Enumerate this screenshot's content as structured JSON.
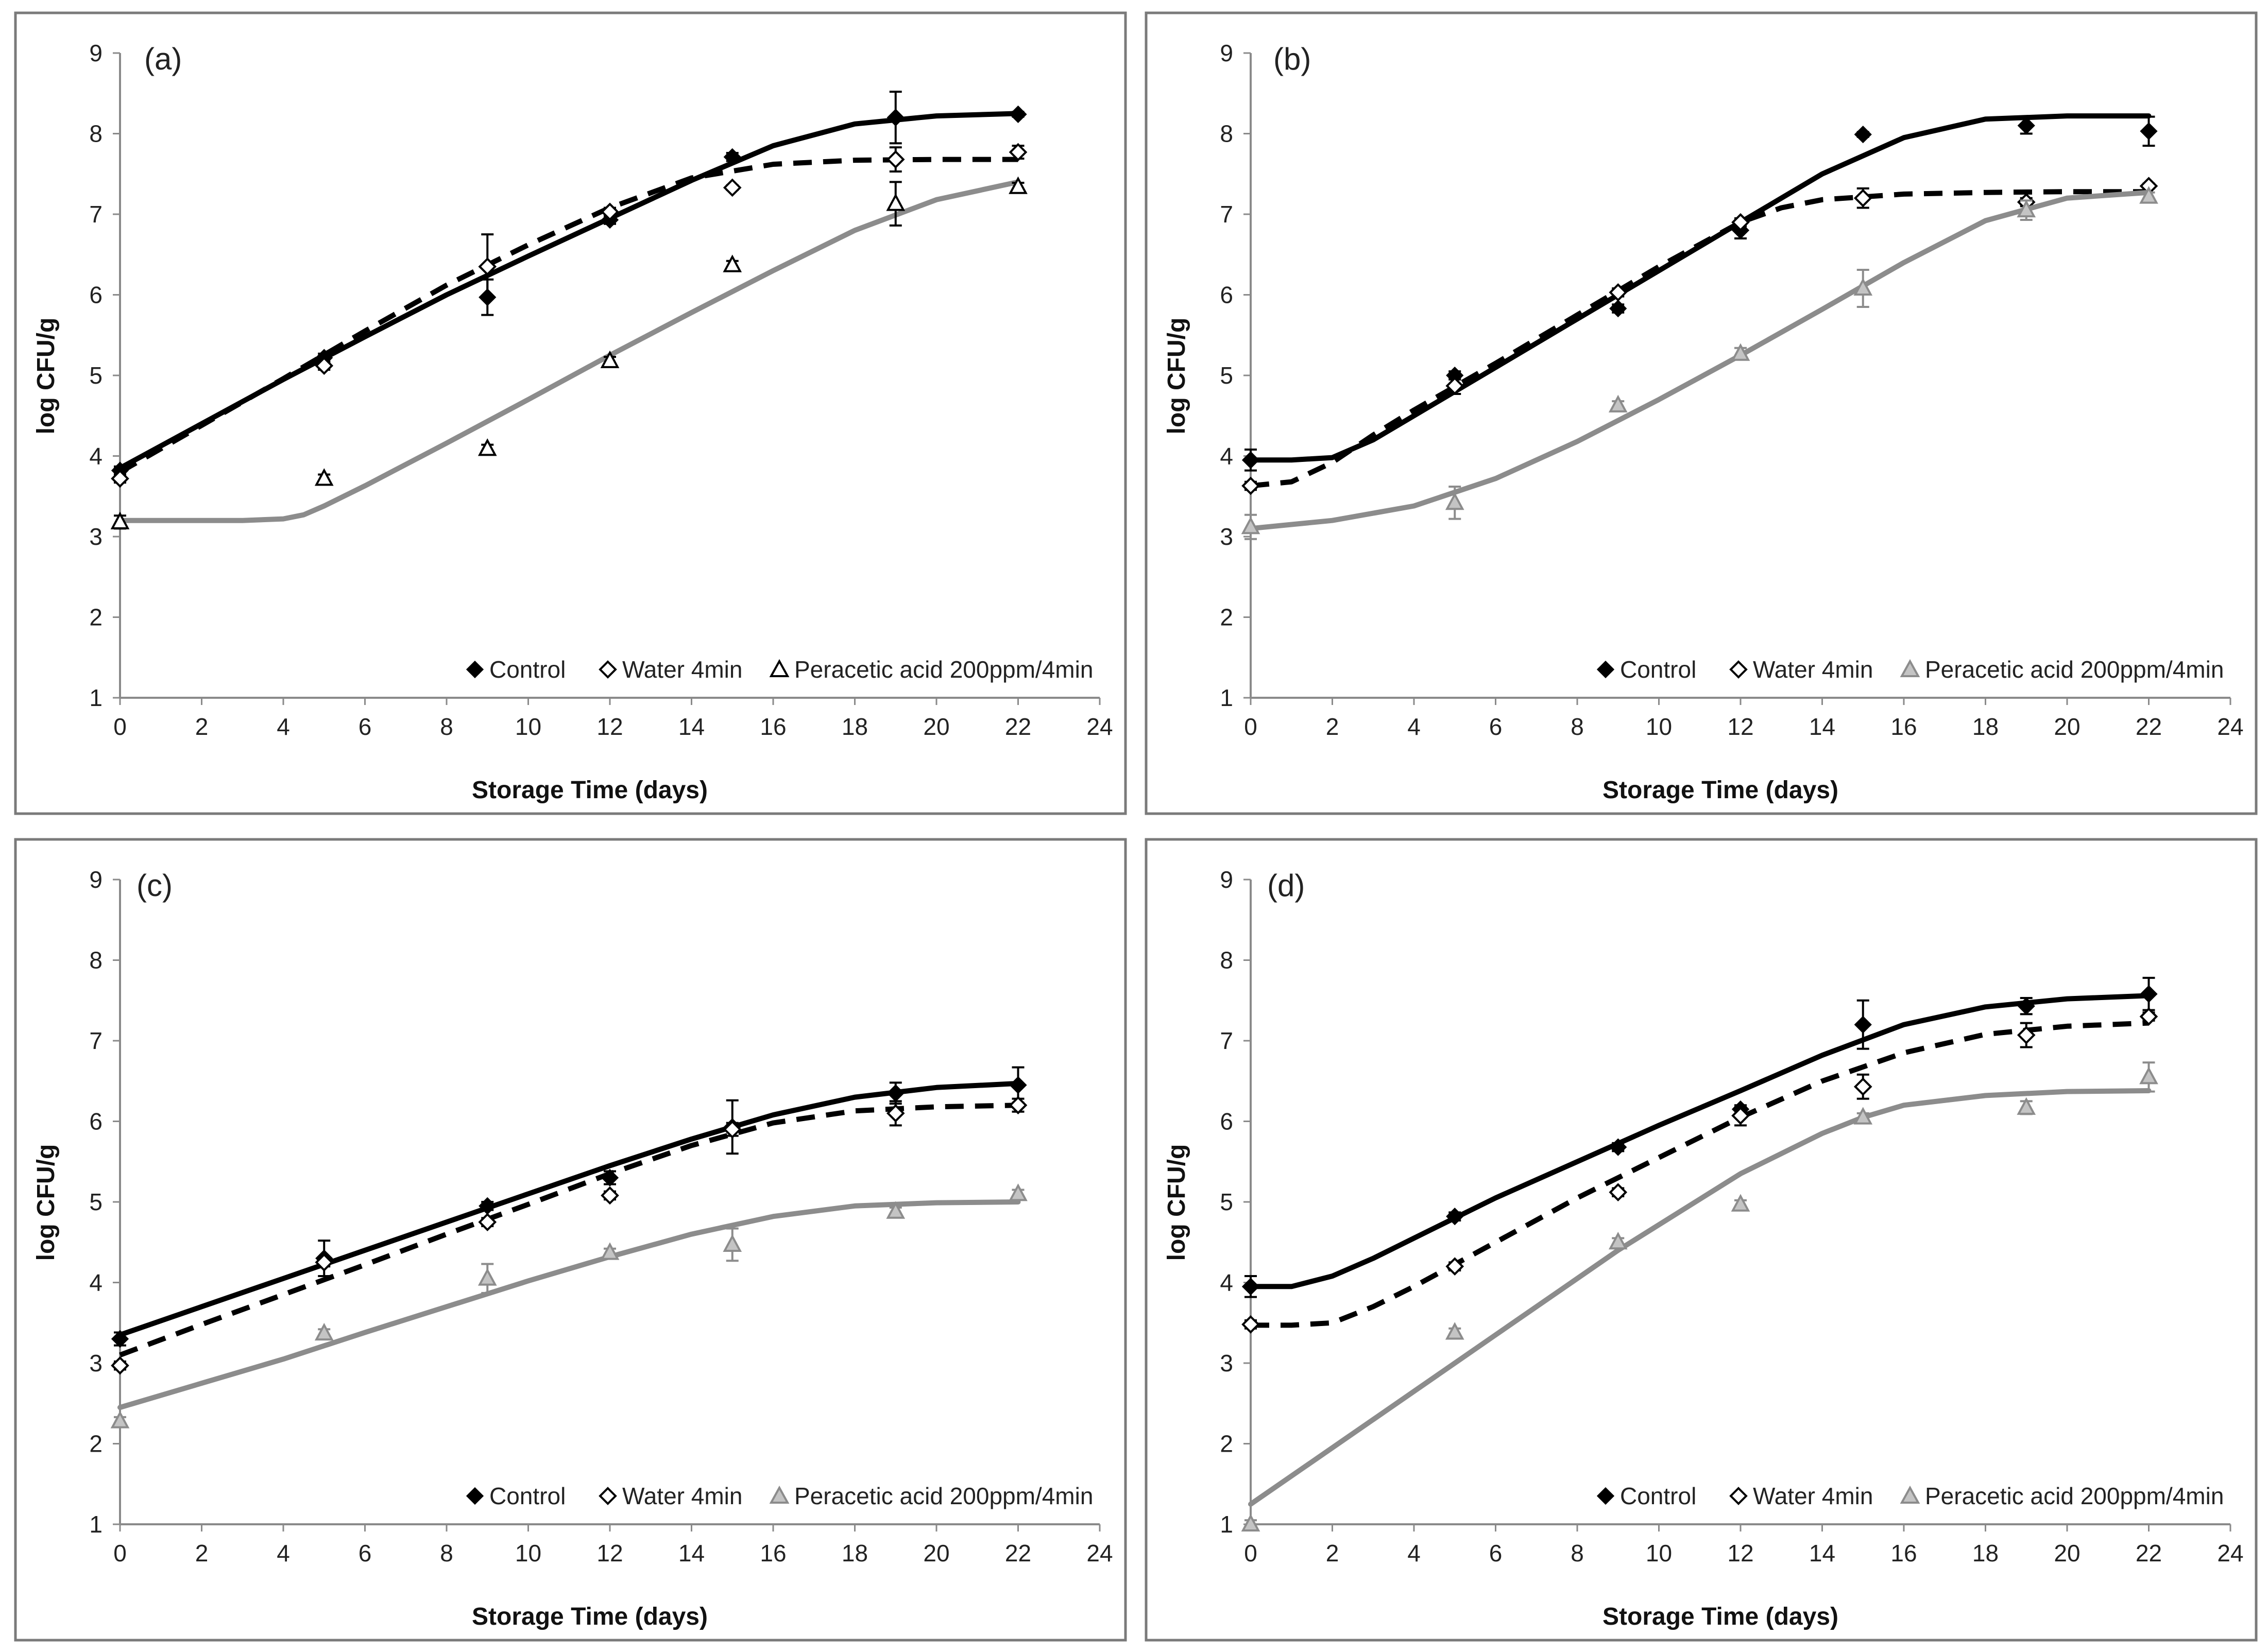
{
  "colors": {
    "control": "#000000",
    "water": "#000000",
    "peracetic_outline_panel_a": "#000000",
    "peracetic": "#8c8c8c",
    "peracetic_fill": "#c4c4c4",
    "frame": "#7a7a7a",
    "axis": "#8a8a8a"
  },
  "chart_data": [
    {
      "type": "scatter",
      "panel_label": "(a)",
      "xlabel": "Storage Time (days)",
      "ylabel": "log CFU/g",
      "xlim": [
        0,
        24
      ],
      "ylim": [
        1,
        9
      ],
      "x_ticks": [
        "0",
        "2",
        "4",
        "6",
        "8",
        "10",
        "12",
        "14",
        "16",
        "18",
        "20",
        "22",
        "24"
      ],
      "y_ticks": [
        "1",
        "2",
        "3",
        "4",
        "5",
        "6",
        "7",
        "8",
        "9"
      ],
      "legend": [
        "Control",
        "Water 4min",
        "Peracetic acid 200ppm/4min"
      ],
      "triangle_style": "outline-black",
      "series": [
        {
          "name": "Control",
          "marker": "diamond-filled",
          "line": "solid-black",
          "x": [
            0,
            5,
            9,
            12,
            15,
            19,
            22
          ],
          "y": [
            3.82,
            5.22,
            5.97,
            6.93,
            7.71,
            8.2,
            8.24
          ],
          "err": [
            0.05,
            0.05,
            0.22,
            0.05,
            0.05,
            0.32,
            0.03
          ],
          "fit_x": [
            0,
            2,
            4,
            6,
            8,
            10,
            12,
            14,
            16,
            18,
            20,
            22
          ],
          "fit_y": [
            3.85,
            4.4,
            4.95,
            5.48,
            6.0,
            6.48,
            6.95,
            7.42,
            7.85,
            8.12,
            8.22,
            8.25
          ]
        },
        {
          "name": "Water 4min",
          "marker": "diamond-open",
          "line": "dashed-black",
          "x": [
            0,
            5,
            9,
            12,
            15,
            19,
            22
          ],
          "y": [
            3.72,
            5.12,
            6.35,
            7.03,
            7.33,
            7.68,
            7.77
          ],
          "err": [
            0.05,
            0.05,
            0.4,
            0.05,
            0.03,
            0.15,
            0.08
          ],
          "fit_x": [
            0,
            2,
            4,
            6,
            8,
            10,
            12,
            14,
            16,
            18,
            20,
            22
          ],
          "fit_y": [
            3.8,
            4.38,
            4.96,
            5.55,
            6.12,
            6.62,
            7.08,
            7.45,
            7.62,
            7.67,
            7.68,
            7.68
          ]
        },
        {
          "name": "Peracetic acid 200ppm/4min",
          "marker": "triangle-open",
          "line": "solid-gray",
          "x": [
            0,
            5,
            9,
            12,
            15,
            19,
            22
          ],
          "y": [
            3.18,
            3.72,
            4.09,
            5.18,
            6.37,
            7.13,
            7.34
          ],
          "err": [
            0.08,
            0.05,
            0.05,
            0.05,
            0.05,
            0.27,
            0.05
          ],
          "fit_x": [
            0,
            2,
            3,
            4,
            4.5,
            5,
            6,
            8,
            10,
            12,
            14,
            16,
            18,
            20,
            22
          ],
          "fit_y": [
            3.2,
            3.2,
            3.2,
            3.22,
            3.27,
            3.38,
            3.63,
            4.16,
            4.7,
            5.25,
            5.78,
            6.3,
            6.8,
            7.18,
            7.4
          ]
        }
      ]
    },
    {
      "type": "scatter",
      "panel_label": "(b)",
      "xlabel": "Storage Time (days)",
      "ylabel": "log CFU/g",
      "xlim": [
        0,
        24
      ],
      "ylim": [
        1,
        9
      ],
      "x_ticks": [
        "0",
        "2",
        "4",
        "6",
        "8",
        "10",
        "12",
        "14",
        "16",
        "18",
        "20",
        "22",
        "24"
      ],
      "y_ticks": [
        "1",
        "2",
        "3",
        "4",
        "5",
        "6",
        "7",
        "8",
        "9"
      ],
      "legend": [
        "Control",
        "Water 4min",
        "Peracetic acid 200ppm/4min"
      ],
      "triangle_style": "gray",
      "series": [
        {
          "name": "Control",
          "marker": "diamond-filled",
          "line": "solid-black",
          "x": [
            0,
            5,
            9,
            12,
            15,
            19,
            22
          ],
          "y": [
            3.95,
            5.0,
            5.83,
            6.8,
            7.99,
            8.1,
            8.03
          ],
          "err": [
            0.13,
            0.05,
            0.05,
            0.1,
            0.03,
            0.1,
            0.18
          ],
          "fit_x": [
            0,
            1,
            2,
            3,
            4,
            6,
            8,
            10,
            12,
            14,
            16,
            18,
            20,
            22
          ],
          "fit_y": [
            3.95,
            3.95,
            3.98,
            4.2,
            4.5,
            5.1,
            5.7,
            6.3,
            6.9,
            7.5,
            7.95,
            8.18,
            8.22,
            8.22
          ]
        },
        {
          "name": "Water 4min",
          "marker": "diamond-open",
          "line": "dashed-black",
          "x": [
            0,
            5,
            9,
            12,
            15,
            19,
            22
          ],
          "y": [
            3.63,
            4.87,
            6.03,
            6.9,
            7.2,
            7.15,
            7.35
          ],
          "err": [
            0.05,
            0.1,
            0.05,
            0.05,
            0.12,
            0.05,
            0.03
          ],
          "fit_x": [
            0,
            1,
            2,
            3,
            4,
            6,
            8,
            10,
            12,
            13,
            14,
            16,
            18,
            20,
            22
          ],
          "fit_y": [
            3.63,
            3.68,
            3.92,
            4.26,
            4.57,
            5.15,
            5.75,
            6.35,
            6.9,
            7.08,
            7.18,
            7.25,
            7.27,
            7.28,
            7.28
          ]
        },
        {
          "name": "Peracetic acid 200ppm/4min",
          "marker": "triangle-open",
          "line": "solid-gray",
          "x": [
            0,
            5,
            9,
            12,
            15,
            19,
            22
          ],
          "y": [
            3.12,
            3.42,
            4.63,
            5.27,
            6.08,
            7.05,
            7.22
          ],
          "err": [
            0.15,
            0.2,
            0.05,
            0.07,
            0.23,
            0.12,
            0.05
          ],
          "fit_x": [
            0,
            2,
            4,
            6,
            8,
            10,
            12,
            14,
            16,
            18,
            20,
            22
          ],
          "fit_y": [
            3.1,
            3.2,
            3.38,
            3.72,
            4.18,
            4.7,
            5.25,
            5.82,
            6.4,
            6.92,
            7.2,
            7.27
          ]
        }
      ]
    },
    {
      "type": "scatter",
      "panel_label": "(c)",
      "xlabel": "Storage Time (days)",
      "ylabel": "log CFU/g",
      "xlim": [
        0,
        24
      ],
      "ylim": [
        1,
        9
      ],
      "x_ticks": [
        "0",
        "2",
        "4",
        "6",
        "8",
        "10",
        "12",
        "14",
        "16",
        "18",
        "20",
        "22",
        "24"
      ],
      "y_ticks": [
        "1",
        "2",
        "3",
        "4",
        "5",
        "6",
        "7",
        "8",
        "9"
      ],
      "legend": [
        "Control",
        "Water 4min",
        "Peracetic acid 200ppm/4min"
      ],
      "triangle_style": "gray",
      "series": [
        {
          "name": "Control",
          "marker": "diamond-filled",
          "line": "solid-black",
          "x": [
            0,
            5,
            9,
            12,
            15,
            19,
            22
          ],
          "y": [
            3.3,
            4.3,
            4.95,
            5.3,
            5.93,
            6.35,
            6.45
          ],
          "err": [
            0.08,
            0.22,
            0.05,
            0.08,
            0.33,
            0.13,
            0.22
          ],
          "fit_x": [
            0,
            2,
            4,
            6,
            8,
            10,
            12,
            14,
            16,
            18,
            20,
            22
          ],
          "fit_y": [
            3.35,
            3.7,
            4.05,
            4.4,
            4.75,
            5.1,
            5.45,
            5.78,
            6.08,
            6.3,
            6.42,
            6.47
          ]
        },
        {
          "name": "Water 4min",
          "marker": "diamond-open",
          "line": "dashed-black",
          "x": [
            0,
            5,
            9,
            12,
            15,
            19,
            22
          ],
          "y": [
            2.97,
            4.25,
            4.75,
            5.08,
            5.9,
            6.1,
            6.2
          ],
          "err": [
            0.05,
            0.05,
            0.05,
            0.05,
            0.08,
            0.15,
            0.08
          ],
          "fit_x": [
            0,
            2,
            4,
            6,
            8,
            10,
            12,
            14,
            16,
            18,
            20,
            22
          ],
          "fit_y": [
            3.1,
            3.48,
            3.85,
            4.22,
            4.6,
            4.97,
            5.35,
            5.7,
            5.98,
            6.13,
            6.18,
            6.2
          ]
        },
        {
          "name": "Peracetic acid 200ppm/4min",
          "marker": "triangle-open",
          "line": "solid-gray",
          "x": [
            0,
            5,
            9,
            12,
            15,
            19,
            22
          ],
          "y": [
            2.28,
            3.37,
            4.05,
            4.37,
            4.47,
            4.88,
            5.1
          ],
          "err": [
            0.05,
            0.05,
            0.18,
            0.05,
            0.2,
            0.05,
            0.05
          ],
          "fit_x": [
            0,
            2,
            4,
            6,
            8,
            10,
            12,
            14,
            16,
            18,
            20,
            22
          ],
          "fit_y": [
            2.45,
            2.75,
            3.05,
            3.38,
            3.7,
            4.02,
            4.32,
            4.6,
            4.82,
            4.95,
            4.99,
            5.0
          ]
        }
      ]
    },
    {
      "type": "scatter",
      "panel_label": "(d)",
      "xlabel": "Storage Time (days)",
      "ylabel": "log CFU/g",
      "xlim": [
        0,
        24
      ],
      "ylim": [
        1,
        9
      ],
      "x_ticks": [
        "0",
        "2",
        "4",
        "6",
        "8",
        "10",
        "12",
        "14",
        "16",
        "18",
        "20",
        "22",
        "24"
      ],
      "y_ticks": [
        "1",
        "2",
        "3",
        "4",
        "5",
        "6",
        "7",
        "8",
        "9"
      ],
      "legend": [
        "Control",
        "Water 4min",
        "Peracetic acid 200ppm/4min"
      ],
      "triangle_style": "gray",
      "series": [
        {
          "name": "Control",
          "marker": "diamond-filled",
          "line": "solid-black",
          "x": [
            0,
            5,
            9,
            12,
            15,
            19,
            22
          ],
          "y": [
            3.95,
            4.82,
            5.68,
            6.15,
            7.2,
            7.43,
            7.58
          ],
          "err": [
            0.13,
            0.05,
            0.05,
            0.05,
            0.3,
            0.1,
            0.2
          ],
          "fit_x": [
            0,
            1,
            2,
            3,
            4,
            6,
            8,
            10,
            12,
            14,
            16,
            18,
            20,
            22
          ],
          "fit_y": [
            3.95,
            3.95,
            4.08,
            4.3,
            4.55,
            5.05,
            5.5,
            5.95,
            6.38,
            6.82,
            7.2,
            7.42,
            7.52,
            7.56
          ]
        },
        {
          "name": "Water 4min",
          "marker": "diamond-open",
          "line": "dashed-black",
          "x": [
            0,
            5,
            9,
            12,
            15,
            19,
            22
          ],
          "y": [
            3.48,
            4.2,
            5.12,
            6.07,
            6.43,
            7.07,
            7.3
          ],
          "err": [
            0.05,
            0.05,
            0.05,
            0.12,
            0.15,
            0.15,
            0.05
          ],
          "fit_x": [
            0,
            1,
            2,
            3,
            4,
            6,
            8,
            10,
            12,
            14,
            16,
            18,
            20,
            22
          ],
          "fit_y": [
            3.47,
            3.47,
            3.5,
            3.7,
            3.95,
            4.5,
            5.05,
            5.55,
            6.05,
            6.5,
            6.85,
            7.08,
            7.18,
            7.22
          ]
        },
        {
          "name": "Peracetic acid 200ppm/4min",
          "marker": "triangle-open",
          "line": "solid-gray",
          "x": [
            0,
            5,
            9,
            12,
            15,
            19,
            22
          ],
          "y": [
            1.0,
            3.38,
            4.5,
            4.97,
            6.05,
            6.17,
            6.55
          ],
          "err": [
            0.05,
            0.05,
            0.05,
            0.05,
            0.05,
            0.08,
            0.18
          ],
          "fit_x": [
            0,
            3,
            6,
            9,
            12,
            14,
            15,
            16,
            18,
            20,
            22
          ],
          "fit_y": [
            1.25,
            2.3,
            3.35,
            4.4,
            5.35,
            5.85,
            6.05,
            6.2,
            6.32,
            6.37,
            6.38
          ]
        }
      ]
    }
  ]
}
